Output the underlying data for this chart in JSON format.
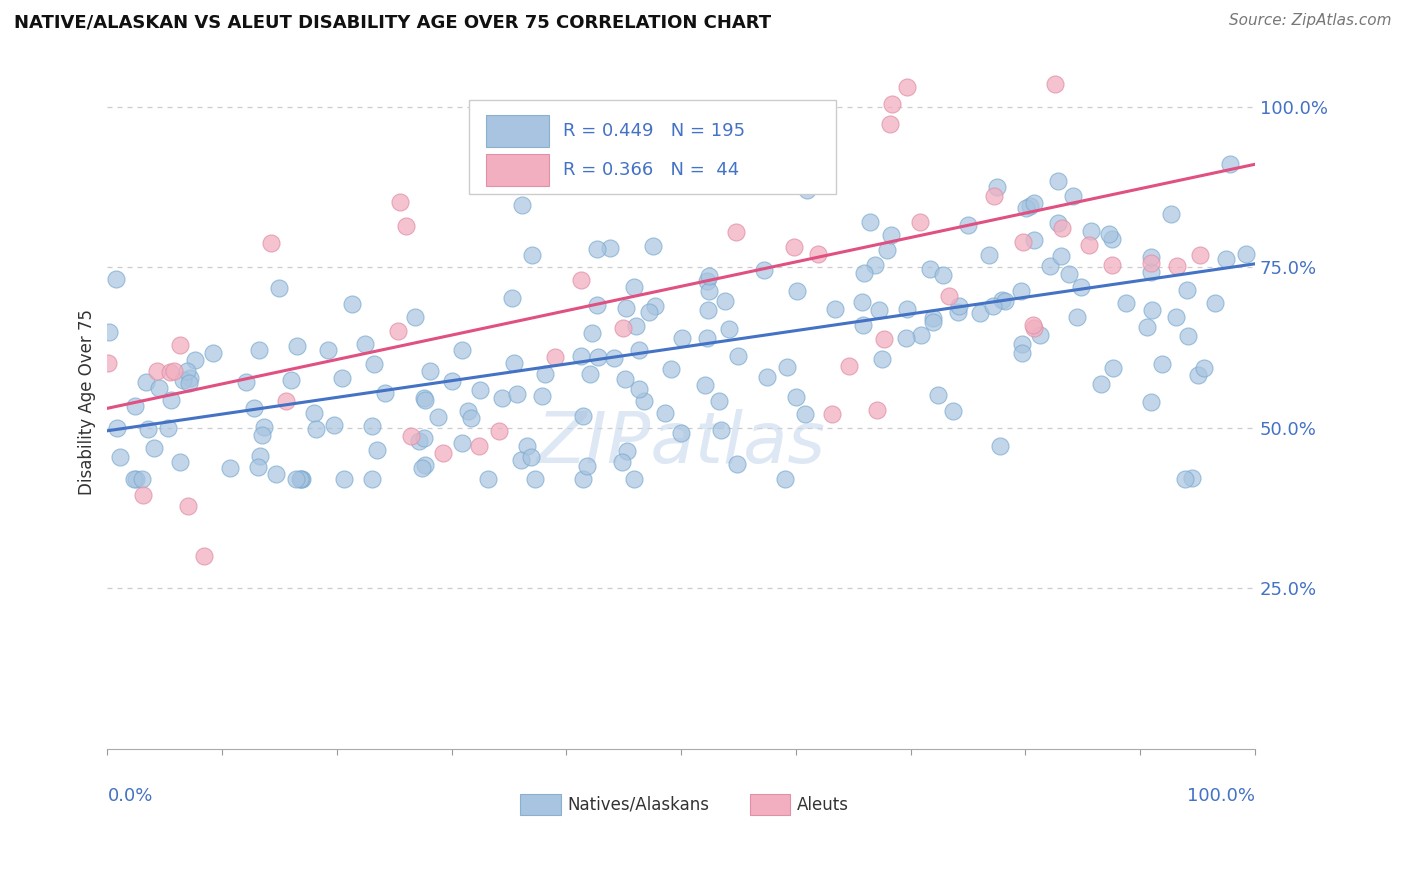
{
  "title": "NATIVE/ALASKAN VS ALEUT DISABILITY AGE OVER 75 CORRELATION CHART",
  "source_text": "Source: ZipAtlas.com",
  "ylabel": "Disability Age Over 75",
  "ytick_labels": [
    "25.0%",
    "50.0%",
    "75.0%",
    "100.0%"
  ],
  "ytick_values": [
    0.25,
    0.5,
    0.75,
    1.0
  ],
  "legend_blue_r": "0.449",
  "legend_blue_n": "195",
  "legend_pink_r": "0.366",
  "legend_pink_n": "44",
  "blue_color": "#a8c4e0",
  "pink_color": "#f2afc0",
  "trendline_blue": "#4472c4",
  "trendline_pink": "#e05080",
  "label_color": "#4472c4",
  "text_color": "#333333",
  "background_color": "#ffffff",
  "grid_color": "#cccccc",
  "watermark_color": "#c8d8ed",
  "blue_intercept": 0.495,
  "blue_slope": 0.26,
  "pink_intercept": 0.53,
  "pink_slope": 0.38,
  "xlim": [
    0.0,
    1.0
  ],
  "ylim": [
    0.0,
    1.08
  ]
}
